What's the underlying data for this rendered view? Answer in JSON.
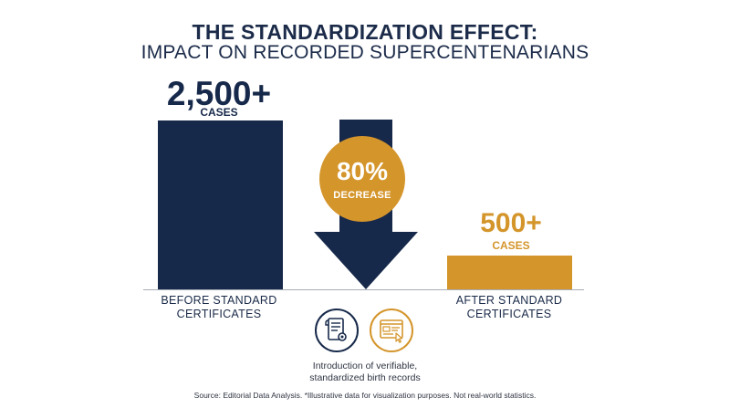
{
  "title": {
    "line1": "THE STANDARDIZATION EFFECT:",
    "line2": "IMPACT ON RECORDED SUPERCENTENARIANS"
  },
  "colors": {
    "navy": "#17294a",
    "gold": "#d4952b",
    "text": "#1b2b49"
  },
  "chart_data": {
    "type": "bar",
    "categories": [
      "BEFORE STANDARD CERTIFICATES",
      "AFTER STANDARD CERTIFICATES"
    ],
    "values": [
      2500,
      500
    ],
    "value_labels": [
      "2,500+",
      "500+"
    ],
    "unit_label": "CASES",
    "annotation": {
      "value": "80%",
      "label": "DECREASE"
    }
  },
  "bars": [
    {
      "value_text": "2,500+",
      "unit": "CASES",
      "label_line1": "BEFORE STANDARD",
      "label_line2": "CERTIFICATES"
    },
    {
      "value_text": "500+",
      "unit": "CASES",
      "label_line1": "AFTER STANDARD",
      "label_line2": "CERTIFICATES"
    }
  ],
  "icons": [
    "certificate-icon",
    "web-form-icon"
  ],
  "caption": {
    "line1": "Introduction of verifiable,",
    "line2": "standardized birth records"
  },
  "source": "Source: Editorial Data Analysis. *Illustrative data for visualization purposes. Not real-world statistics."
}
